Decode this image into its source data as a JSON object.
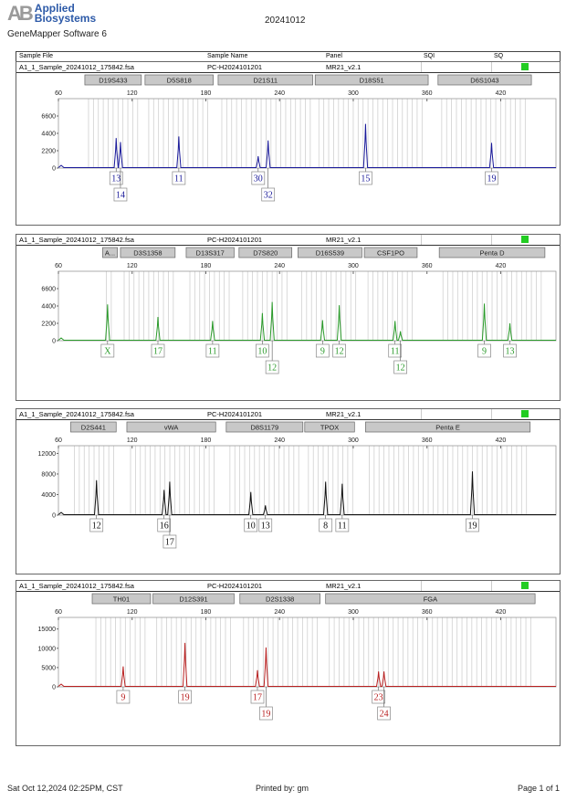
{
  "header": {
    "brand_top": "Applied",
    "brand_bottom": "Biosystems",
    "logo_mark": "AB",
    "software": "GeneMapper Software 6",
    "title": "20241012"
  },
  "columns": {
    "sample_file": "Sample File",
    "sample_name": "Sample Name",
    "panel": "Panel",
    "sqi": "SQI",
    "sq": "SQ"
  },
  "sample": {
    "file": "A1_1_Sample_20241012_175842.fsa",
    "name": "PC-H2024101201",
    "panel": "MR21_v2.1",
    "sq_color": "#22cc22"
  },
  "x_axis": {
    "min": 60,
    "max": 465,
    "ticks": [
      "60",
      "120",
      "180",
      "240",
      "300",
      "360",
      "420"
    ]
  },
  "chart_data": [
    {
      "type": "line",
      "dye_color": "#1a1a9a",
      "ymax": 8800,
      "yticks": [
        "0",
        "2200",
        "4400",
        "6600"
      ],
      "loci": [
        {
          "name": "D19S433",
          "range": [
            81.5,
            127.5
          ]
        },
        {
          "name": "D5S818",
          "range": [
            130.5,
            186
          ]
        },
        {
          "name": "D21S11",
          "range": [
            190,
            267
          ]
        },
        {
          "name": "D18S51",
          "range": [
            269,
            361
          ]
        },
        {
          "name": "D6S1043",
          "range": [
            369,
            445
          ]
        }
      ],
      "peaks": [
        {
          "bp": 107,
          "height": 3800,
          "allele": "13",
          "row": 1
        },
        {
          "bp": 110.5,
          "height": 3300,
          "allele": "14",
          "row": 2
        },
        {
          "bp": 158,
          "height": 4000,
          "allele": "11",
          "row": 1
        },
        {
          "bp": 222.6,
          "height": 1500,
          "allele": "30",
          "row": 1
        },
        {
          "bp": 230.7,
          "height": 3500,
          "allele": "32",
          "row": 2
        },
        {
          "bp": 310,
          "height": 5600,
          "allele": "15",
          "row": 1
        },
        {
          "bp": 412.6,
          "height": 3200,
          "allele": "19",
          "row": 1
        }
      ]
    },
    {
      "type": "line",
      "dye_color": "#2a9a2a",
      "ymax": 8800,
      "yticks": [
        "0",
        "2200",
        "4400",
        "6600"
      ],
      "loci": [
        {
          "name": "A...",
          "range": [
            96,
            108
          ]
        },
        {
          "name": "D3S1358",
          "range": [
            110.5,
            155
          ]
        },
        {
          "name": "D13S317",
          "range": [
            164,
            203
          ]
        },
        {
          "name": "D7S820",
          "range": [
            207,
            250
          ]
        },
        {
          "name": "D16S539",
          "range": [
            255,
            307
          ]
        },
        {
          "name": "CSF1PO",
          "range": [
            309,
            352
          ]
        },
        {
          "name": "Penta D",
          "range": [
            370,
            456
          ]
        }
      ],
      "peaks": [
        {
          "bp": 100,
          "height": 4600,
          "allele": "X",
          "row": 1
        },
        {
          "bp": 141,
          "height": 3000,
          "allele": "17",
          "row": 1
        },
        {
          "bp": 185.5,
          "height": 2500,
          "allele": "11",
          "row": 1
        },
        {
          "bp": 226,
          "height": 3500,
          "allele": "10",
          "row": 1
        },
        {
          "bp": 234,
          "height": 4900,
          "allele": "12",
          "row": 2
        },
        {
          "bp": 275,
          "height": 2600,
          "allele": "9",
          "row": 1
        },
        {
          "bp": 288.6,
          "height": 4500,
          "allele": "12",
          "row": 1
        },
        {
          "bp": 334,
          "height": 2500,
          "allele": "11",
          "row": 1
        },
        {
          "bp": 338.4,
          "height": 1200,
          "allele": "12",
          "row": 2
        },
        {
          "bp": 406.7,
          "height": 4700,
          "allele": "9",
          "row": 1
        },
        {
          "bp": 427.5,
          "height": 2200,
          "allele": "13",
          "row": 1
        }
      ]
    },
    {
      "type": "line",
      "dye_color": "#111111",
      "ymax": 13500,
      "yticks": [
        "0",
        "4000",
        "8000",
        "12000"
      ],
      "loci": [
        {
          "name": "D2S441",
          "range": [
            70,
            107
          ]
        },
        {
          "name": "vWA",
          "range": [
            115.7,
            188
          ]
        },
        {
          "name": "D8S1179",
          "range": [
            196.6,
            259
          ]
        },
        {
          "name": "TPOX",
          "range": [
            260.5,
            301
          ]
        },
        {
          "name": "Penta E",
          "range": [
            310,
            444
          ]
        }
      ],
      "peaks": [
        {
          "bp": 91,
          "height": 6800,
          "allele": "12",
          "row": 1
        },
        {
          "bp": 146,
          "height": 4900,
          "allele": "16",
          "row": 1
        },
        {
          "bp": 150.6,
          "height": 6500,
          "allele": "17",
          "row": 2
        },
        {
          "bp": 216.6,
          "height": 4500,
          "allele": "10",
          "row": 1
        },
        {
          "bp": 228.5,
          "height": 1900,
          "allele": "13",
          "row": 1
        },
        {
          "bp": 277.5,
          "height": 6500,
          "allele": "8",
          "row": 1
        },
        {
          "bp": 291,
          "height": 6100,
          "allele": "11",
          "row": 1
        },
        {
          "bp": 397,
          "height": 8500,
          "allele": "19",
          "row": 1
        }
      ]
    },
    {
      "type": "line",
      "dye_color": "#b82020",
      "ymax": 18000,
      "yticks": [
        "0",
        "5000",
        "10000",
        "15000"
      ],
      "loci": [
        {
          "name": "TH01",
          "range": [
            87.5,
            135
          ]
        },
        {
          "name": "D12S391",
          "range": [
            137,
            203
          ]
        },
        {
          "name": "D2S1338",
          "range": [
            207.7,
            273
          ]
        },
        {
          "name": "FGA",
          "range": [
            277.5,
            448
          ]
        }
      ],
      "peaks": [
        {
          "bp": 112.7,
          "height": 5300,
          "allele": "9",
          "row": 1
        },
        {
          "bp": 163,
          "height": 11400,
          "allele": "19",
          "row": 1
        },
        {
          "bp": 222,
          "height": 4300,
          "allele": "17",
          "row": 1
        },
        {
          "bp": 229,
          "height": 10200,
          "allele": "19",
          "row": 2
        },
        {
          "bp": 320.6,
          "height": 4000,
          "allele": "23",
          "row": 1
        },
        {
          "bp": 325,
          "height": 4000,
          "allele": "24",
          "row": 2
        }
      ]
    }
  ],
  "footer": {
    "datetime": "Sat Oct 12,2024 02:25PM, CST",
    "printed_by": "Printed by: gm",
    "page": "Page 1 of 1"
  }
}
